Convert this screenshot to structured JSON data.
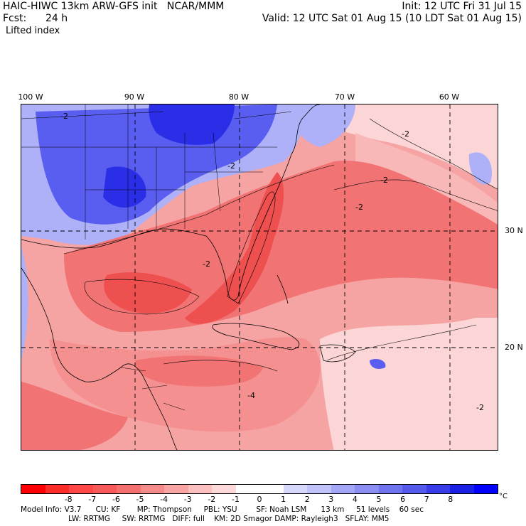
{
  "header": {
    "model_line": "HAIC-HIWC 13km ARW-GFS init   NCAR/MMM",
    "init": "Init: 12 UTC Fri 31 Jul 15",
    "fcst_label": "Fcst:",
    "fcst_value": "24 h",
    "valid": "Valid: 12 UTC Sat 01 Aug 15 (10 LDT Sat 01 Aug 15)",
    "field": "Lifted index"
  },
  "axes": {
    "lon_labels": [
      "100 W",
      "90 W",
      "80 W",
      "70 W",
      "60 W"
    ],
    "lat_labels": [
      "30 N",
      "20 N"
    ]
  },
  "map": {
    "contour_labels": [
      "-2",
      "-2",
      "-2",
      "-2",
      "-2",
      "-2",
      "-4",
      "-2"
    ],
    "colors": {
      "ocean_base": "#f6a3a3",
      "deep_red": "#ee4f4f",
      "mid_red": "#f27373",
      "light_red": "#fcd6d6",
      "deep_blue": "#2a2ee6",
      "mid_blue": "#5a5ef0",
      "light_blue": "#aeb1f7"
    }
  },
  "colorbar": {
    "colors": [
      "#ff0000",
      "#ff2c2c",
      "#ff4747",
      "#f65a5a",
      "#f57070",
      "#f78a8a",
      "#f9a4a4",
      "#fbbfbf",
      "#fdd9d9",
      "#ffffff",
      "#ffffff",
      "#d7d8fb",
      "#bfc1f9",
      "#a4a7f6",
      "#8b8ef3",
      "#6f73f0",
      "#5559ec",
      "#393dea",
      "#1c21e6",
      "#0000ff"
    ],
    "ticks": [
      "-8",
      "-7",
      "-6",
      "-5",
      "-4",
      "-3",
      "-2",
      "-1",
      "0",
      "1",
      "2",
      "3",
      "4",
      "5",
      "6",
      "7",
      "8"
    ],
    "unit": "°C"
  },
  "footer": {
    "line1": "Model Info: V3.7      CU: KF       MP: Thompson     PBL: YSU        SF: Noah LSM      13 km     51 levels    60 sec",
    "line2": "LW: RRTMG     SW: RRTMG   DIFF: full    KM: 2D Smagor DAMP: Rayleigh3   SFLAY: MM5"
  }
}
